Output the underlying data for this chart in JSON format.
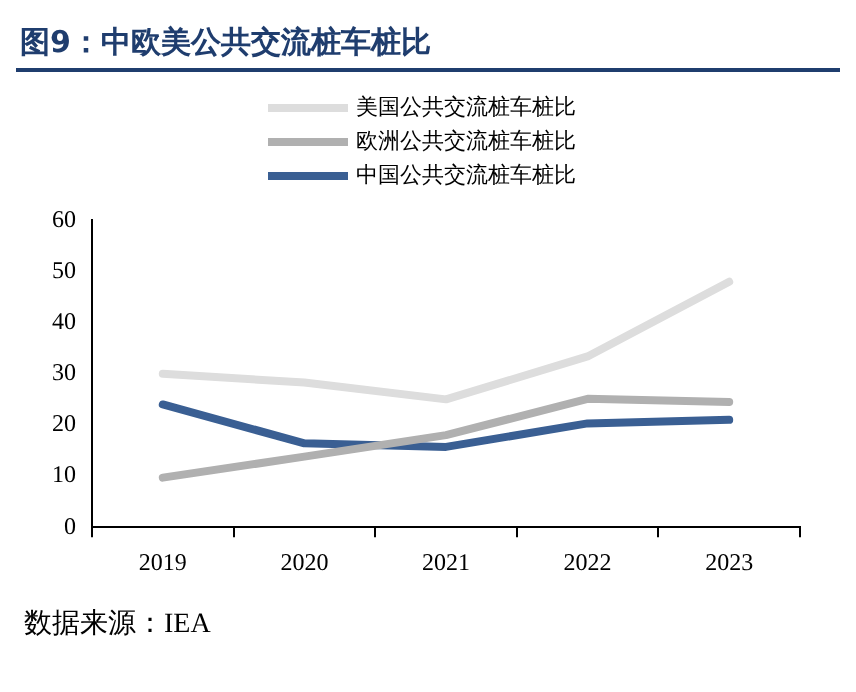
{
  "chart_data": {
    "type": "line",
    "title": "图9：中欧美公共交流桩车桩比",
    "categories": [
      "2019",
      "2020",
      "2021",
      "2022",
      "2023"
    ],
    "series": [
      {
        "name": "美国公共交流桩车桩比",
        "color": "#dddddd",
        "values": [
          30,
          28.3,
          25,
          33.4,
          48
        ]
      },
      {
        "name": "欧洲公共交流桩车桩比",
        "color": "#b0b0b0",
        "values": [
          9.7,
          13.8,
          18,
          25.1,
          24.5
        ]
      },
      {
        "name": "中国公共交流桩车桩比",
        "color": "#3a5f93",
        "values": [
          24,
          16.4,
          15.7,
          20.3,
          21
        ]
      }
    ],
    "ylim": [
      0,
      60
    ],
    "yticks": [
      0,
      10,
      20,
      30,
      40,
      50,
      60
    ],
    "grid": false,
    "legend": "top",
    "marker": "none",
    "line_style": "solid",
    "annotations": [
      "数据来源：IEA"
    ]
  }
}
